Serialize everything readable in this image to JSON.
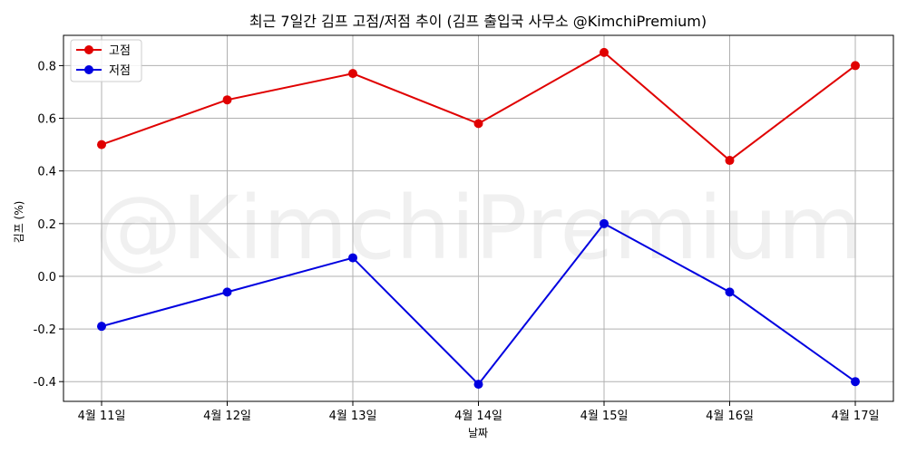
{
  "chart_data": {
    "type": "line",
    "title": "최근 7일간 김프 고점/저점 추이 (김프 출입국 사무소 @KimchiPremium)",
    "xlabel": "날짜",
    "ylabel": "김프 (%)",
    "categories": [
      "4월 11일",
      "4월 12일",
      "4월 13일",
      "4월 14일",
      "4월 15일",
      "4월 16일",
      "4월 17일"
    ],
    "series": [
      {
        "name": "고점",
        "color": "#e00000",
        "values": [
          0.5,
          0.67,
          0.77,
          0.58,
          0.85,
          0.44,
          0.8
        ]
      },
      {
        "name": "저점",
        "color": "#0000e0",
        "values": [
          -0.19,
          -0.06,
          0.07,
          -0.41,
          0.2,
          -0.06,
          -0.4
        ]
      }
    ],
    "yticks": [
      "-0.4",
      "-0.2",
      "0.0",
      "0.2",
      "0.4",
      "0.6",
      "0.8"
    ],
    "ylim": [
      -0.475,
      0.915
    ],
    "grid": true,
    "legend_position": "top-left",
    "watermark": "@KimchiPremium"
  }
}
